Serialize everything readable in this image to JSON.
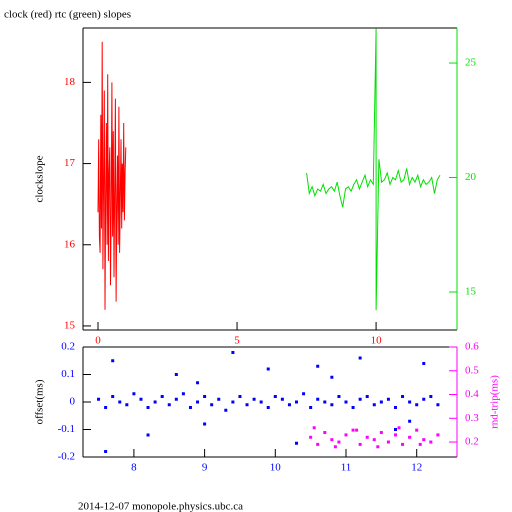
{
  "chart_data": [
    {
      "type": "line",
      "title": "clock (red) rtc (green) slopes",
      "ylabel": "clockslope",
      "xlim": [
        -0.54,
        12.91
      ],
      "ylim": [
        14.95,
        18.67
      ],
      "y2lim": [
        13.34,
        26.53
      ],
      "xticks": [
        0,
        5,
        10
      ],
      "yticks": [
        15,
        16,
        17,
        18
      ],
      "y2ticks": [
        15,
        20,
        25
      ],
      "series": [
        {
          "color": "#ff0000",
          "x": [
            0.0,
            0.025,
            0.05,
            0.075,
            0.1,
            0.125,
            0.15,
            0.175,
            0.2,
            0.225,
            0.25,
            0.275,
            0.3,
            0.325,
            0.35,
            0.375,
            0.4,
            0.425,
            0.45,
            0.475,
            0.5,
            0.525,
            0.55,
            0.575,
            0.6,
            0.625,
            0.65,
            0.675,
            0.7,
            0.725,
            0.75,
            0.775,
            0.8,
            0.825,
            0.85,
            0.875,
            0.9,
            0.925,
            0.95,
            0.975,
            1.0
          ],
          "values": [
            16.4,
            17.3,
            16.1,
            15.9,
            17.6,
            16.2,
            18.5,
            15.7,
            16.8,
            17.9,
            15.2,
            16.6,
            17.5,
            16.0,
            18.1,
            15.8,
            16.9,
            17.2,
            15.5,
            16.4,
            18.0,
            16.1,
            17.4,
            15.6,
            16.7,
            17.8,
            15.3,
            16.5,
            17.1,
            16.0,
            17.7,
            15.9,
            16.6,
            17.3,
            16.2,
            17.0,
            16.4,
            17.5,
            16.3,
            16.9,
            17.2
          ]
        },
        {
          "color": "#00e000",
          "axis": "y2",
          "x": [
            7.5,
            7.6,
            7.7,
            7.8,
            7.9,
            8.0,
            8.1,
            8.2,
            8.3,
            8.4,
            8.5,
            8.6,
            8.7,
            8.8,
            8.9,
            9.0,
            9.1,
            9.2,
            9.3,
            9.4,
            9.5,
            9.6,
            9.7,
            9.8,
            9.9,
            10.0,
            10.0,
            10.1,
            10.2,
            10.3,
            10.4,
            10.5,
            10.6,
            10.7,
            10.8,
            10.9,
            11.0,
            11.1,
            11.2,
            11.3,
            11.4,
            11.5,
            11.6,
            11.7,
            11.8,
            11.9,
            12.0,
            12.1,
            12.2,
            12.3
          ],
          "values": [
            20.2,
            19.3,
            19.6,
            19.2,
            19.5,
            19.4,
            19.7,
            19.3,
            19.5,
            19.6,
            19.4,
            19.8,
            19.2,
            18.7,
            19.5,
            19.6,
            19.4,
            19.7,
            19.9,
            19.5,
            19.8,
            20.1,
            19.6,
            19.9,
            19.7,
            26.5,
            14.2,
            20.8,
            19.8,
            19.9,
            20.2,
            19.7,
            20.0,
            19.9,
            20.3,
            19.8,
            19.9,
            20.4,
            19.7,
            20.0,
            19.8,
            20.1,
            19.6,
            19.9,
            19.7,
            19.8,
            20.0,
            19.3,
            19.9,
            20.1
          ]
        }
      ]
    },
    {
      "type": "scatter",
      "ylabel": "offset(ms)",
      "y2label": "rnd-trip(ms)",
      "xlim": [
        7.28,
        12.57
      ],
      "ylim": [
        -0.2,
        0.2
      ],
      "y2lim": [
        0.137,
        0.6
      ],
      "xticks": [
        8,
        9,
        10,
        11,
        12
      ],
      "yticks": [
        -0.2,
        -0.1,
        0,
        0.1,
        0.2
      ],
      "y2ticks": [
        0.2,
        0.3,
        0.4,
        0.5,
        0.6
      ],
      "series": [
        {
          "color": "#0000ff",
          "x": [
            7.5,
            7.6,
            7.7,
            7.8,
            7.9,
            8.0,
            8.1,
            8.2,
            8.3,
            8.4,
            8.5,
            8.6,
            8.7,
            8.8,
            8.9,
            9.0,
            9.1,
            9.2,
            9.3,
            9.4,
            9.5,
            9.6,
            9.7,
            9.8,
            9.9,
            10.0,
            10.1,
            10.2,
            10.3,
            10.4,
            10.5,
            10.6,
            10.7,
            10.8,
            10.9,
            11.0,
            11.1,
            11.2,
            11.3,
            11.4,
            11.5,
            11.6,
            11.7,
            11.8,
            11.9,
            12.0,
            12.1,
            12.2,
            12.3,
            7.7,
            8.2,
            8.6,
            9.0,
            9.4,
            9.9,
            10.3,
            10.8,
            11.2,
            11.7,
            12.1,
            7.6,
            8.9,
            10.6,
            11.9
          ],
          "values": [
            0.01,
            -0.02,
            0.02,
            0.0,
            -0.01,
            0.03,
            0.01,
            -0.02,
            0.0,
            0.02,
            -0.01,
            0.01,
            0.03,
            -0.02,
            0.0,
            0.02,
            -0.01,
            0.01,
            -0.03,
            0.0,
            0.02,
            -0.01,
            0.01,
            0.0,
            -0.02,
            0.02,
            0.01,
            -0.01,
            0.0,
            0.03,
            -0.02,
            0.01,
            0.0,
            -0.01,
            0.02,
            0.0,
            -0.02,
            0.01,
            0.02,
            -0.01,
            0.0,
            0.01,
            -0.02,
            0.02,
            0.0,
            -0.01,
            0.01,
            0.02,
            -0.01,
            0.15,
            -0.12,
            0.1,
            -0.08,
            0.18,
            0.12,
            -0.15,
            0.09,
            0.16,
            -0.1,
            0.14,
            -0.18,
            0.07,
            0.13,
            -0.07
          ]
        },
        {
          "color": "#ff00ff",
          "axis": "y2",
          "x": [
            10.5,
            10.6,
            10.7,
            10.8,
            10.9,
            11.0,
            11.1,
            11.2,
            11.3,
            11.4,
            11.5,
            11.6,
            11.7,
            11.8,
            11.9,
            12.0,
            12.1,
            12.2,
            12.3,
            10.55,
            10.85,
            11.15,
            11.45,
            11.75,
            12.05
          ],
          "values": [
            0.22,
            0.19,
            0.24,
            0.21,
            0.2,
            0.23,
            0.25,
            0.19,
            0.22,
            0.21,
            0.24,
            0.2,
            0.23,
            0.19,
            0.22,
            0.25,
            0.21,
            0.2,
            0.23,
            0.26,
            0.18,
            0.25,
            0.18,
            0.26,
            0.19
          ]
        }
      ]
    }
  ],
  "footer": "2014-12-07 monopole.physics.ubc.ca"
}
